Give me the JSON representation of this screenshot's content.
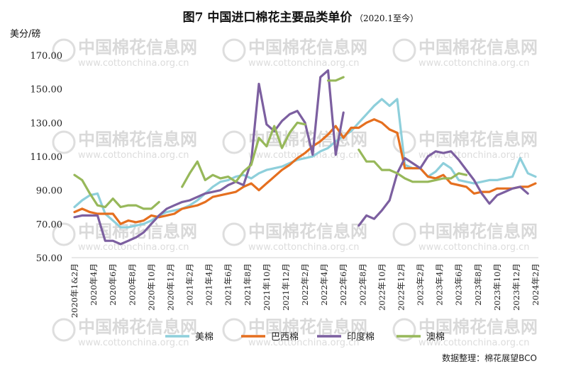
{
  "chart_data": {
    "type": "line",
    "title": "图7  中国进口棉花主要品类单价",
    "subtitle": "（2020.1至今）",
    "ylabel": "美分/磅",
    "ylim": [
      50,
      170
    ],
    "yticks": [
      "50.00",
      "70.00",
      "90.00",
      "110.00",
      "130.00",
      "150.00",
      "170.00"
    ],
    "x_labels": [
      "2020年1&2月",
      "2020年4月",
      "2020年6月",
      "2020年8月",
      "2020年10月",
      "2020年12月",
      "2021年2月",
      "2021年4月",
      "2021年6月",
      "2021年8月",
      "2021年10月",
      "2021年12月",
      "2022年2月",
      "2022年4月",
      "2022年6月",
      "2022年8月",
      "2022年10月",
      "2022年12月",
      "2023年2月",
      "2023年4月",
      "2023年6月",
      "2023年8月",
      "2023年10月",
      "2023年12月",
      "2024年2月"
    ],
    "grid": false,
    "legend_position": "bottom",
    "series": [
      {
        "name": "美棉",
        "color": "#8ecfdb",
        "values": [
          80,
          84,
          87,
          88,
          76,
          72,
          68,
          68,
          69,
          70,
          72,
          75,
          77,
          78,
          79,
          81,
          84,
          88,
          92,
          95,
          96,
          98,
          99,
          97,
          100,
          102,
          103,
          104,
          106,
          108,
          109,
          110,
          113,
          115,
          119,
          122,
          125,
          130,
          135,
          140,
          144,
          140,
          144,
          105,
          103,
          103,
          98,
          101,
          106,
          103,
          96,
          95,
          94,
          95,
          96,
          96,
          97,
          98,
          109,
          100,
          98
        ]
      },
      {
        "name": "巴西棉",
        "color": "#e56f1f",
        "values": [
          77,
          79,
          77,
          76,
          76,
          76,
          70,
          72,
          71,
          72,
          75,
          74,
          75,
          76,
          79,
          80,
          81,
          83,
          86,
          87,
          88,
          89,
          92,
          94,
          90,
          94,
          98,
          102,
          105,
          109,
          112,
          116,
          119,
          123,
          128,
          121,
          127,
          127,
          130,
          132,
          130,
          126,
          124,
          103,
          103,
          103,
          98,
          97,
          99,
          94,
          93,
          92,
          88,
          89,
          89,
          91,
          91,
          91,
          92,
          92,
          94
        ]
      },
      {
        "name": "印度棉",
        "color": "#7c5fa0",
        "values": [
          74,
          75,
          75,
          75,
          60,
          60,
          58,
          60,
          62,
          65,
          70,
          75,
          79,
          81,
          83,
          84,
          86,
          88,
          89,
          90,
          93,
          95,
          93,
          107,
          153,
          129,
          125,
          131,
          135,
          137,
          130,
          111,
          157,
          161,
          111,
          136,
          null,
          69,
          75,
          73,
          78,
          84,
          100,
          109,
          106,
          103,
          110,
          113,
          112,
          113,
          108,
          102,
          96,
          88,
          82,
          87,
          89,
          91,
          92,
          88
        ]
      },
      {
        "name": "澳棉",
        "color": "#97b85a",
        "values": [
          99,
          96,
          88,
          81,
          80,
          85,
          80,
          81,
          81,
          79,
          79,
          83,
          null,
          null,
          92,
          100,
          107,
          96,
          99,
          97,
          98,
          95,
          101,
          105,
          121,
          116,
          128,
          115,
          124,
          130,
          129,
          null,
          null,
          155,
          155,
          157,
          null,
          114,
          107,
          107,
          102,
          102,
          100,
          97,
          95,
          95,
          95,
          96,
          97,
          97,
          100,
          99
        ]
      }
    ]
  },
  "source_note": "数据整理：棉花展望BCO",
  "watermark": {
    "brand": "中国棉花信息网",
    "url": "www.cottonchina.org.cn"
  }
}
